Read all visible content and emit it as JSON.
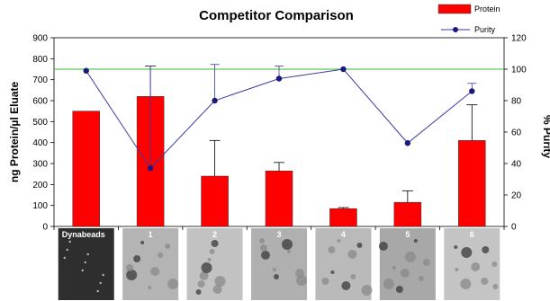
{
  "chart_data": {
    "type": "bar",
    "title": "Competitor Comparison",
    "ylabel": "ng Protein/µl Eluate",
    "y2label": "% Purity",
    "ylim": [
      0,
      900
    ],
    "y2lim": [
      0,
      120
    ],
    "yticks": [
      "0",
      "100",
      "200",
      "300",
      "400",
      "500",
      "600",
      "700",
      "800",
      "900"
    ],
    "y2ticks": [
      "0",
      "20",
      "40",
      "60",
      "80",
      "100",
      "120"
    ],
    "categories": [
      "Dynabeads",
      "1",
      "2",
      "3",
      "4",
      "5",
      "6"
    ],
    "reference_line_y2": 100,
    "legend_position": "top-right",
    "grid": false,
    "series": [
      {
        "name": "Protein",
        "kind": "bar",
        "axis": "left",
        "color": "#ff0000",
        "values": [
          550,
          620,
          240,
          265,
          85,
          115,
          410
        ],
        "error_upper": [
          550,
          765,
          410,
          305,
          90,
          170,
          580
        ]
      },
      {
        "name": "Purity",
        "kind": "line",
        "axis": "right",
        "color": "#3a3aa0",
        "values": [
          99,
          37,
          80,
          94,
          100,
          53,
          86
        ],
        "error_upper": [
          99,
          102,
          103,
          102,
          100,
          53,
          91
        ]
      }
    ],
    "reference_line_color": "#33bb33"
  }
}
